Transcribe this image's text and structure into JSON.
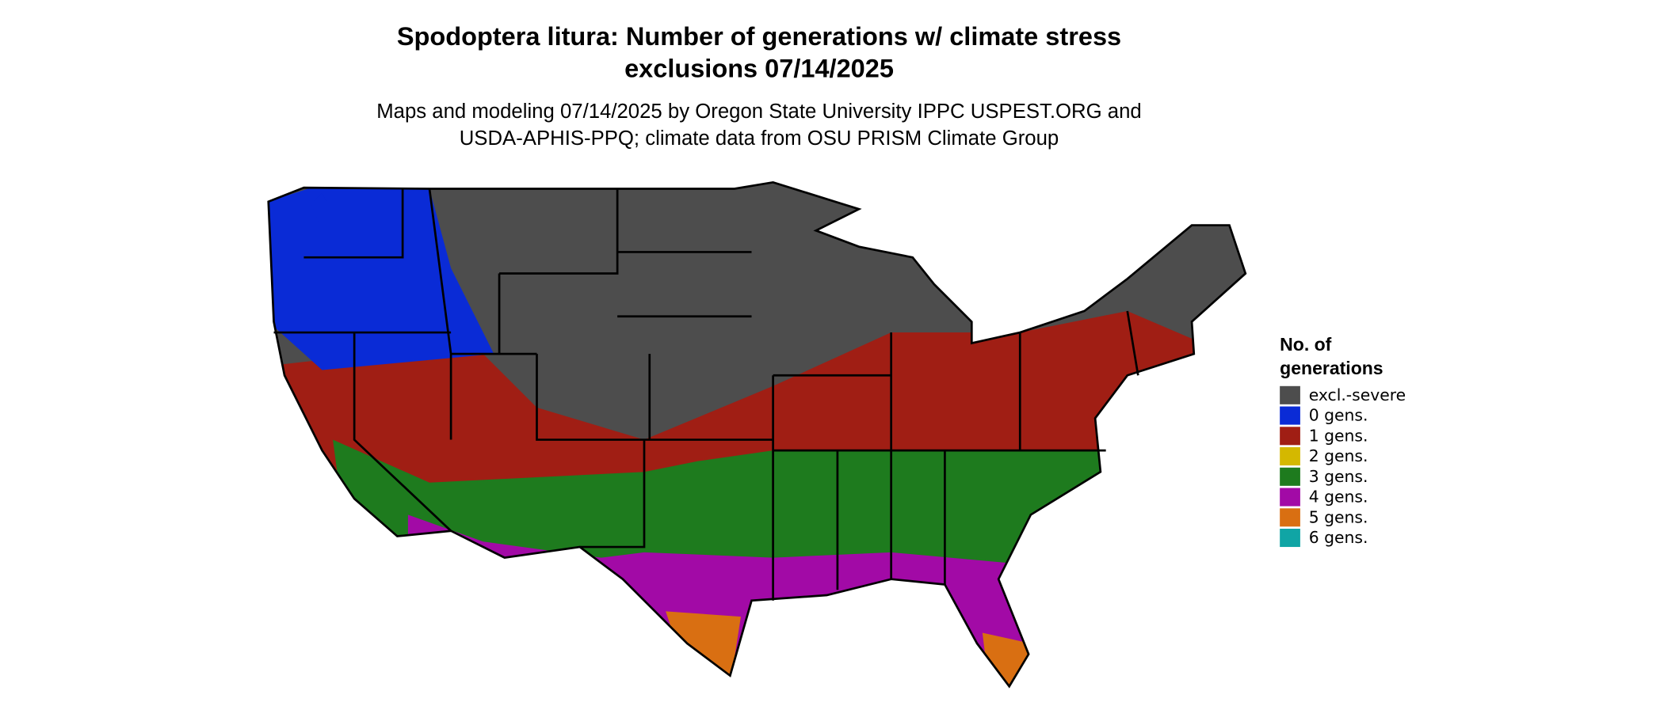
{
  "title": {
    "lines": [
      "Spodoptera litura: Number of generations w/ climate stress",
      "exclusions 07/14/2025"
    ]
  },
  "subtitle": {
    "lines": [
      "Maps and modeling 07/14/2025 by Oregon State University IPPC USPEST.ORG and",
      "USDA-APHIS-PPQ; climate data from OSU PRISM Climate Group"
    ]
  },
  "legend": {
    "title_lines": [
      "No. of",
      "generations"
    ],
    "items": [
      {
        "label": "excl.-severe",
        "color": "#4d4d4d"
      },
      {
        "label": "0 gens.",
        "color": "#0a2bd6"
      },
      {
        "label": "1 gens.",
        "color": "#a01e14"
      },
      {
        "label": "2 gens.",
        "color": "#d4b800"
      },
      {
        "label": "3 gens.",
        "color": "#1e7b1e"
      },
      {
        "label": "4 gens.",
        "color": "#a20aa6"
      },
      {
        "label": "5 gens.",
        "color": "#d96f12"
      },
      {
        "label": "6 gens.",
        "color": "#10a5a5"
      }
    ]
  }
}
